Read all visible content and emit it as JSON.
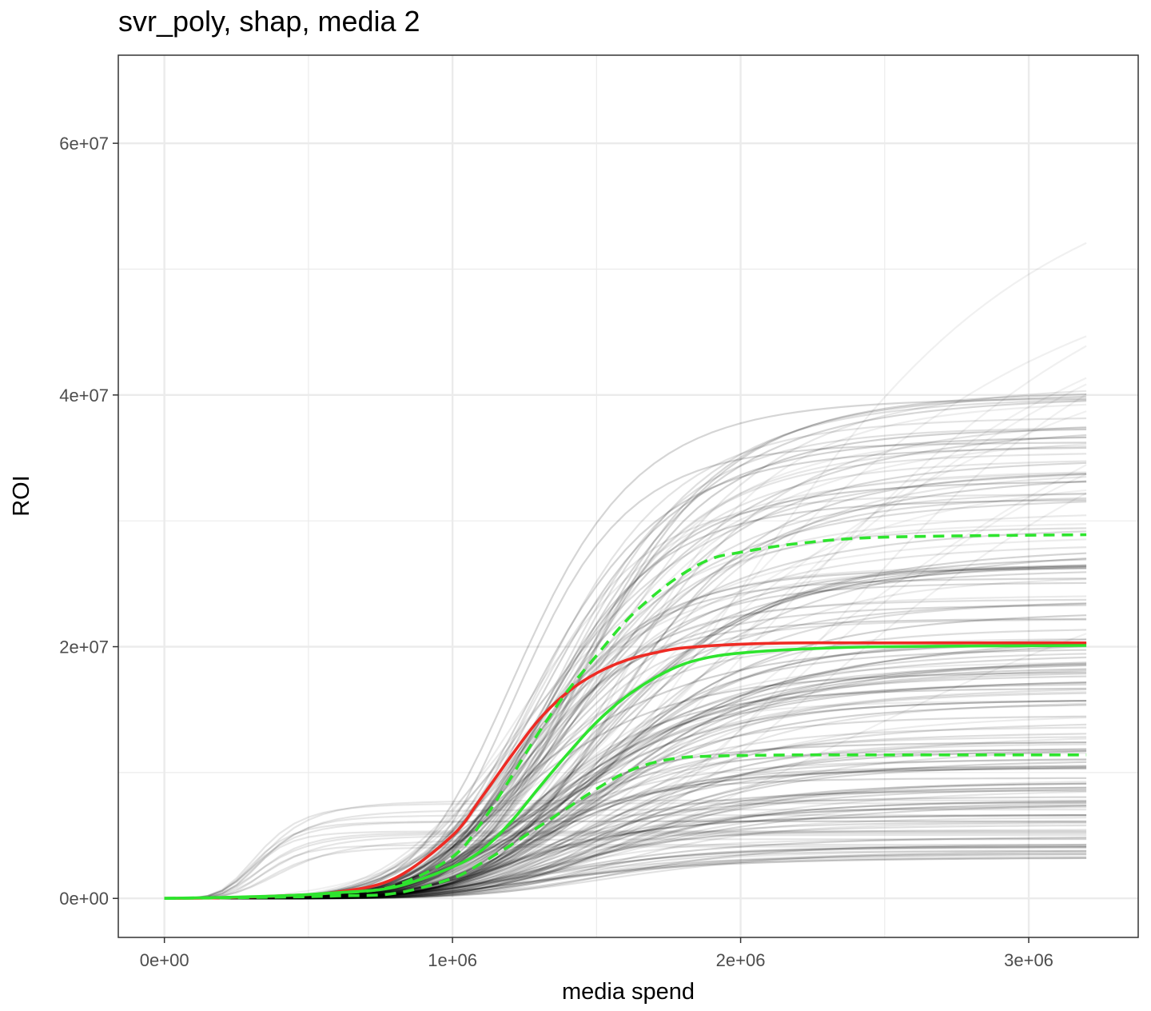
{
  "chart_data": {
    "type": "line",
    "title": "svr_poly, shap, media 2",
    "xlabel": "media spend",
    "ylabel": "ROI",
    "xlim": [
      -160000,
      3380000
    ],
    "ylim": [
      -3100000,
      67000000
    ],
    "x_ticks": [
      0,
      1000000,
      2000000,
      3000000
    ],
    "x_tick_labels": [
      "0e+00",
      "1e+06",
      "2e+06",
      "3e+06"
    ],
    "y_ticks": [
      0,
      20000000,
      40000000,
      60000000
    ],
    "y_tick_labels": [
      "0e+00",
      "2e+07",
      "4e+07",
      "6e+07"
    ],
    "x_minor_ticks": [
      500000,
      1500000,
      2500000
    ],
    "y_minor_ticks": [
      10000000,
      30000000,
      50000000
    ],
    "grid": true,
    "legend": "none",
    "x_max": 3200000,
    "colors": {
      "bootstrap": "#000000",
      "highlight": "#ee2b24",
      "median": "#2ee42e",
      "interval": "#2ee42e",
      "grid": "#ebebeb",
      "border": "#333333"
    },
    "bootstrap_curves": {
      "note_count": 180,
      "plateau_range": [
        3200000,
        64000000
      ],
      "midpoint_range": [
        350000,
        2700000
      ]
    },
    "series": [
      {
        "role": "highlight",
        "style": "solid",
        "color": "#ee2b24",
        "x": [
          0,
          200000,
          400000,
          600000,
          800000,
          1000000,
          1100000,
          1200000,
          1300000,
          1400000,
          1500000,
          1600000,
          1700000,
          1800000,
          2000000,
          2200000,
          2500000,
          3200000
        ],
        "y": [
          0,
          50000,
          200000,
          500000,
          1600000,
          5000000,
          8000000,
          11200000,
          14200000,
          16400000,
          17900000,
          18900000,
          19500000,
          19900000,
          20200000,
          20300000,
          20300000,
          20300000
        ]
      },
      {
        "role": "median",
        "style": "solid",
        "color": "#2ee42e",
        "x": [
          0,
          200000,
          400000,
          600000,
          800000,
          1000000,
          1100000,
          1200000,
          1300000,
          1400000,
          1500000,
          1600000,
          1700000,
          1800000,
          1900000,
          2000000,
          2200000,
          2500000,
          3200000
        ],
        "y": [
          0,
          80000,
          200000,
          450000,
          900000,
          2500000,
          3800000,
          6000000,
          8800000,
          11500000,
          14000000,
          16000000,
          17500000,
          18600000,
          19200000,
          19500000,
          19800000,
          20000000,
          20100000
        ]
      },
      {
        "role": "upper",
        "style": "dashed",
        "color": "#2ee42e",
        "x": [
          0,
          400000,
          600000,
          800000,
          1000000,
          1100000,
          1200000,
          1300000,
          1400000,
          1500000,
          1600000,
          1700000,
          1800000,
          1900000,
          2000000,
          2200000,
          2500000,
          3200000
        ],
        "y": [
          0,
          150000,
          400000,
          1000000,
          3300000,
          6000000,
          9500000,
          13200000,
          16500000,
          19300000,
          22000000,
          24100000,
          25800000,
          27000000,
          27500000,
          28200000,
          28700000,
          28900000
        ]
      },
      {
        "role": "lower",
        "style": "dashed",
        "color": "#2ee42e",
        "x": [
          0,
          400000,
          600000,
          800000,
          1000000,
          1100000,
          1200000,
          1300000,
          1400000,
          1500000,
          1600000,
          1700000,
          1800000,
          1900000,
          2000000,
          2200000,
          2500000,
          3200000
        ],
        "y": [
          0,
          100000,
          200000,
          400000,
          1600000,
          2800000,
          4200000,
          5700000,
          7200000,
          8700000,
          10000000,
          10800000,
          11200000,
          11300000,
          11350000,
          11400000,
          11400000,
          11400000
        ]
      }
    ]
  }
}
